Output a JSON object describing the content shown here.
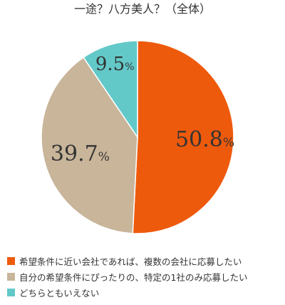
{
  "chart_data": {
    "type": "pie",
    "title": "一途？八方美人？（全体）",
    "unit": "%",
    "slices": [
      {
        "label": "希望条件に近い会社であれば、複数の会社に応募したい",
        "value": 50.8,
        "display": "50.8",
        "color": "#ee5a0c"
      },
      {
        "label": "自分の希望条件にぴったりの、特定の1社のみ応募したい",
        "value": 39.7,
        "display": "39.7",
        "color": "#c8b59a"
      },
      {
        "label": "どちらともいえない",
        "value": 9.5,
        "display": "9.5",
        "color": "#63c9c8"
      }
    ],
    "legend_position": "bottom"
  }
}
